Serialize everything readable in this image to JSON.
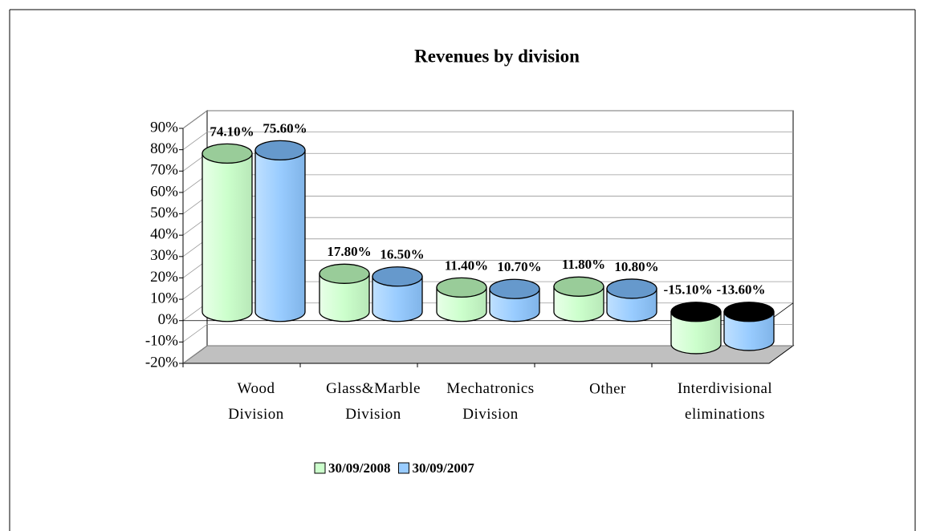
{
  "chart_data": {
    "type": "bar3d",
    "title": "Revenues by division",
    "categories": [
      "Wood Division",
      "Glass&Marble Division",
      "Mechatronics Division",
      "Other",
      "Interdivisional eliminations"
    ],
    "series": [
      {
        "name": "30/09/2008",
        "color": "#ccffcc",
        "values": [
          74.1,
          17.8,
          11.4,
          11.8,
          -15.1
        ],
        "value_labels": [
          "74.10%",
          "17.80%",
          "11.40%",
          "11.80%",
          "-15.10%"
        ]
      },
      {
        "name": "30/09/2007",
        "color": "#99ccff",
        "values": [
          75.6,
          16.5,
          10.7,
          10.8,
          -13.6
        ],
        "value_labels": [
          "75.60%",
          "16.50%",
          "10.70%",
          "10.80%",
          "-13.60%"
        ]
      }
    ],
    "ylim": [
      -20,
      90
    ],
    "yticks": [
      {
        "value": -20,
        "label": "-20%"
      },
      {
        "value": -10,
        "label": "-10%"
      },
      {
        "value": 0,
        "label": "0%"
      },
      {
        "value": 10,
        "label": "10%"
      },
      {
        "value": 20,
        "label": "20%"
      },
      {
        "value": 30,
        "label": "30%"
      },
      {
        "value": 40,
        "label": "40%"
      },
      {
        "value": 50,
        "label": "50%"
      },
      {
        "value": 60,
        "label": "60%"
      },
      {
        "value": 70,
        "label": "70%"
      },
      {
        "value": 80,
        "label": "80%"
      },
      {
        "value": 90,
        "label": "90%"
      }
    ],
    "grid": true,
    "legend": "bottom"
  }
}
